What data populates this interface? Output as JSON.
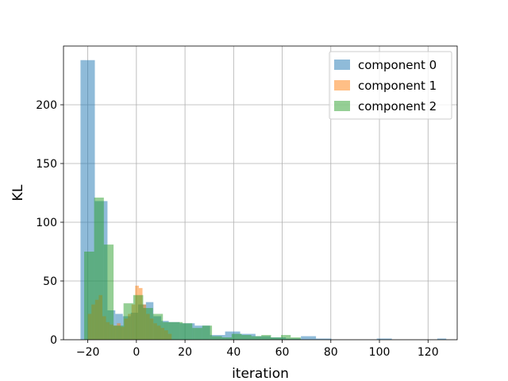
{
  "chart_data": {
    "type": "histogram",
    "title": "",
    "xlabel": "iteration",
    "ylabel": "KL",
    "xlim": [
      -30,
      132
    ],
    "ylim": [
      0,
      250
    ],
    "xticks": [
      -20,
      0,
      20,
      40,
      60,
      80,
      100,
      120
    ],
    "yticks": [
      0,
      50,
      100,
      150,
      200
    ],
    "grid": true,
    "legend_position": "top-right",
    "series": [
      {
        "name": "component 0",
        "color": "#1f77b4",
        "opacity": 0.5,
        "bins": [
          {
            "x0": -23.0,
            "x1": -17.1,
            "count": 238
          },
          {
            "x0": -17.1,
            "x1": -11.9,
            "count": 118
          },
          {
            "x0": -11.9,
            "x1": -8.7,
            "count": 25
          },
          {
            "x0": -8.7,
            "x1": -5.6,
            "count": 22
          },
          {
            "x0": -5.6,
            "x1": -2.3,
            "count": 20
          },
          {
            "x0": -2.3,
            "x1": 0.7,
            "count": 23
          },
          {
            "x0": 0.7,
            "x1": 3.9,
            "count": 30
          },
          {
            "x0": 3.9,
            "x1": 7.0,
            "count": 32
          },
          {
            "x0": 7.0,
            "x1": 10.2,
            "count": 20
          },
          {
            "x0": 10.2,
            "x1": 13.3,
            "count": 16
          },
          {
            "x0": 13.3,
            "x1": 17.8,
            "count": 15
          },
          {
            "x0": 17.8,
            "x1": 24.0,
            "count": 14
          },
          {
            "x0": 24.0,
            "x1": 30.3,
            "count": 12
          },
          {
            "x0": 30.3,
            "x1": 36.5,
            "count": 4
          },
          {
            "x0": 36.5,
            "x1": 42.7,
            "count": 7
          },
          {
            "x0": 42.7,
            "x1": 49.0,
            "count": 5
          },
          {
            "x0": 49.0,
            "x1": 55.2,
            "count": 3
          },
          {
            "x0": 55.2,
            "x1": 61.5,
            "count": 2
          },
          {
            "x0": 61.5,
            "x1": 67.7,
            "count": 1
          },
          {
            "x0": 67.7,
            "x1": 73.9,
            "count": 3
          },
          {
            "x0": 73.9,
            "x1": 80.2,
            "count": 1
          },
          {
            "x0": 80.2,
            "x1": 86.4,
            "count": 0
          },
          {
            "x0": 86.4,
            "x1": 92.6,
            "count": 0
          },
          {
            "x0": 92.6,
            "x1": 98.9,
            "count": 0
          },
          {
            "x0": 98.9,
            "x1": 105.1,
            "count": 1
          },
          {
            "x0": 105.1,
            "x1": 111.4,
            "count": 0
          },
          {
            "x0": 111.4,
            "x1": 117.6,
            "count": 0
          },
          {
            "x0": 117.6,
            "x1": 123.8,
            "count": 0
          },
          {
            "x0": 123.8,
            "x1": 127.5,
            "count": 1
          }
        ]
      },
      {
        "name": "component 1",
        "color": "#ff7f0e",
        "opacity": 0.5,
        "bins": [
          {
            "x0": -20.0,
            "x1": -18.5,
            "count": 22
          },
          {
            "x0": -18.5,
            "x1": -17.0,
            "count": 30
          },
          {
            "x0": -17.0,
            "x1": -15.5,
            "count": 34
          },
          {
            "x0": -15.5,
            "x1": -14.0,
            "count": 38
          },
          {
            "x0": -14.0,
            "x1": -12.5,
            "count": 20
          },
          {
            "x0": -12.5,
            "x1": -11.0,
            "count": 15
          },
          {
            "x0": -11.0,
            "x1": -9.5,
            "count": 13
          },
          {
            "x0": -9.5,
            "x1": -8.0,
            "count": 12
          },
          {
            "x0": -8.0,
            "x1": -6.5,
            "count": 14
          },
          {
            "x0": -6.5,
            "x1": -5.0,
            "count": 11
          },
          {
            "x0": -5.0,
            "x1": -3.5,
            "count": 18
          },
          {
            "x0": -3.5,
            "x1": -2.0,
            "count": 22
          },
          {
            "x0": -2.0,
            "x1": -0.5,
            "count": 30
          },
          {
            "x0": -0.5,
            "x1": 1.0,
            "count": 46
          },
          {
            "x0": 1.0,
            "x1": 2.5,
            "count": 44
          },
          {
            "x0": 2.5,
            "x1": 4.0,
            "count": 30
          },
          {
            "x0": 4.0,
            "x1": 5.5,
            "count": 22
          },
          {
            "x0": 5.5,
            "x1": 7.0,
            "count": 18
          },
          {
            "x0": 7.0,
            "x1": 8.5,
            "count": 14
          },
          {
            "x0": 8.5,
            "x1": 10.0,
            "count": 12
          },
          {
            "x0": 10.0,
            "x1": 11.5,
            "count": 10
          },
          {
            "x0": 11.5,
            "x1": 13.0,
            "count": 8
          },
          {
            "x0": 13.0,
            "x1": 14.5,
            "count": 5
          }
        ]
      },
      {
        "name": "component 2",
        "color": "#2ca02c",
        "opacity": 0.5,
        "bins": [
          {
            "x0": -21.5,
            "x1": -17.4,
            "count": 75
          },
          {
            "x0": -17.4,
            "x1": -13.4,
            "count": 121
          },
          {
            "x0": -13.4,
            "x1": -9.4,
            "count": 81
          },
          {
            "x0": -9.4,
            "x1": -5.3,
            "count": 12
          },
          {
            "x0": -5.3,
            "x1": -1.3,
            "count": 31
          },
          {
            "x0": -1.3,
            "x1": 2.8,
            "count": 38
          },
          {
            "x0": 2.8,
            "x1": 6.8,
            "count": 27
          },
          {
            "x0": 6.8,
            "x1": 10.9,
            "count": 22
          },
          {
            "x0": 10.9,
            "x1": 14.9,
            "count": 15
          },
          {
            "x0": 14.9,
            "x1": 19.0,
            "count": 15
          },
          {
            "x0": 19.0,
            "x1": 23.0,
            "count": 14
          },
          {
            "x0": 23.0,
            "x1": 27.1,
            "count": 10
          },
          {
            "x0": 27.1,
            "x1": 31.1,
            "count": 12
          },
          {
            "x0": 31.1,
            "x1": 35.2,
            "count": 3
          },
          {
            "x0": 35.2,
            "x1": 39.2,
            "count": 2
          },
          {
            "x0": 39.2,
            "x1": 43.3,
            "count": 5
          },
          {
            "x0": 43.3,
            "x1": 47.3,
            "count": 4
          },
          {
            "x0": 47.3,
            "x1": 51.4,
            "count": 3
          },
          {
            "x0": 51.4,
            "x1": 55.4,
            "count": 4
          },
          {
            "x0": 55.4,
            "x1": 59.5,
            "count": 2
          },
          {
            "x0": 59.5,
            "x1": 63.5,
            "count": 4
          },
          {
            "x0": 63.5,
            "x1": 67.6,
            "count": 2
          }
        ]
      }
    ]
  }
}
